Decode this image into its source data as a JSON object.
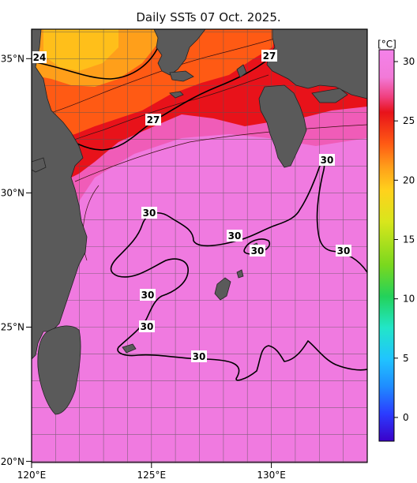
{
  "title": "Daily SSTs 07 Oct. 2025.",
  "map": {
    "lon_range": [
      120,
      134
    ],
    "lat_range": [
      20,
      36
    ],
    "lon_ticks": [
      "120°E",
      "125°E",
      "130°E"
    ],
    "lat_ticks": [
      "35°N",
      "30°N",
      "25°N",
      "20°N"
    ],
    "grid": "1-degree graticule",
    "land_color": "#5a5a5a",
    "contour_labels": [
      "24",
      "27",
      "27",
      "30",
      "30",
      "30",
      "30",
      "30",
      "30",
      "30",
      "30"
    ]
  },
  "colorbar": {
    "unit": "[°C]",
    "tick_labels": [
      "30",
      "25",
      "20",
      "15",
      "10",
      "5",
      "0"
    ],
    "ticks": [
      30,
      25,
      20,
      15,
      10,
      5,
      0
    ],
    "range": [
      -2,
      31
    ],
    "palette": [
      "#3a00c8",
      "#2b3cff",
      "#1f8cff",
      "#20c4ff",
      "#22e6c8",
      "#23d25a",
      "#7ad81e",
      "#d8e61c",
      "#ffd21c",
      "#ff9f1a",
      "#ff5a14",
      "#e8121a",
      "#f04080",
      "#f27ad8",
      "#f482ea"
    ]
  }
}
